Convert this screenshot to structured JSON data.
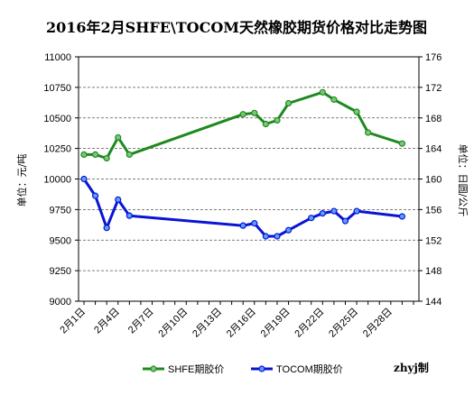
{
  "chart_data": {
    "type": "line",
    "title": "2016年2月SHFE\\TOCOM天然橡胶期货价格对比走势图",
    "ylabel_left": "单位：元/吨",
    "ylabel_right": "单位：日圆/公斤",
    "credit": "zhyj制",
    "y_left": {
      "min": 9000,
      "max": 11000,
      "step": 250,
      "ticks": [
        "11000",
        "10750",
        "10500",
        "10250",
        "10000",
        "9750",
        "9500",
        "9250",
        "9000"
      ]
    },
    "y_right": {
      "min": 144,
      "max": 176,
      "step": 4,
      "ticks": [
        "176",
        "172",
        "168",
        "164",
        "160",
        "156",
        "152",
        "148",
        "144"
      ]
    },
    "x": {
      "min": 1,
      "max": 30,
      "tick_values": [
        1,
        4,
        7,
        10,
        13,
        16,
        19,
        22,
        25,
        28
      ],
      "tick_labels": [
        "2月1日",
        "2月4日",
        "2月7日",
        "2月10日",
        "2月13日",
        "2月16日",
        "2月19日",
        "2月22日",
        "2月25日",
        "2月28日"
      ]
    },
    "grid": true,
    "legend_position": "bottom",
    "series": [
      {
        "name": "SHFE期胶价",
        "axis": "left",
        "color": "#1e8a1e",
        "points": [
          [
            1,
            10200
          ],
          [
            2,
            10200
          ],
          [
            3,
            10170
          ],
          [
            4,
            10340
          ],
          [
            5,
            10200
          ],
          [
            15,
            10530
          ],
          [
            16,
            10540
          ],
          [
            17,
            10450
          ],
          [
            18,
            10480
          ],
          [
            19,
            10620
          ],
          [
            22,
            10710
          ],
          [
            23,
            10650
          ],
          [
            25,
            10550
          ],
          [
            26,
            10380
          ],
          [
            29,
            10290
          ]
        ]
      },
      {
        "name": "TOCOM期胶价",
        "axis": "right",
        "color": "#0a14d4",
        "points": [
          [
            1,
            160.0
          ],
          [
            2,
            157.8
          ],
          [
            3,
            153.6
          ],
          [
            4,
            157.3
          ],
          [
            5,
            155.2
          ],
          [
            15,
            153.9
          ],
          [
            16,
            154.2
          ],
          [
            17,
            152.5
          ],
          [
            18,
            152.5
          ],
          [
            19,
            153.3
          ],
          [
            21,
            154.9
          ],
          [
            22,
            155.5
          ],
          [
            23,
            155.8
          ],
          [
            24,
            154.5
          ],
          [
            25,
            155.8
          ],
          [
            29,
            155.1
          ]
        ]
      }
    ]
  }
}
